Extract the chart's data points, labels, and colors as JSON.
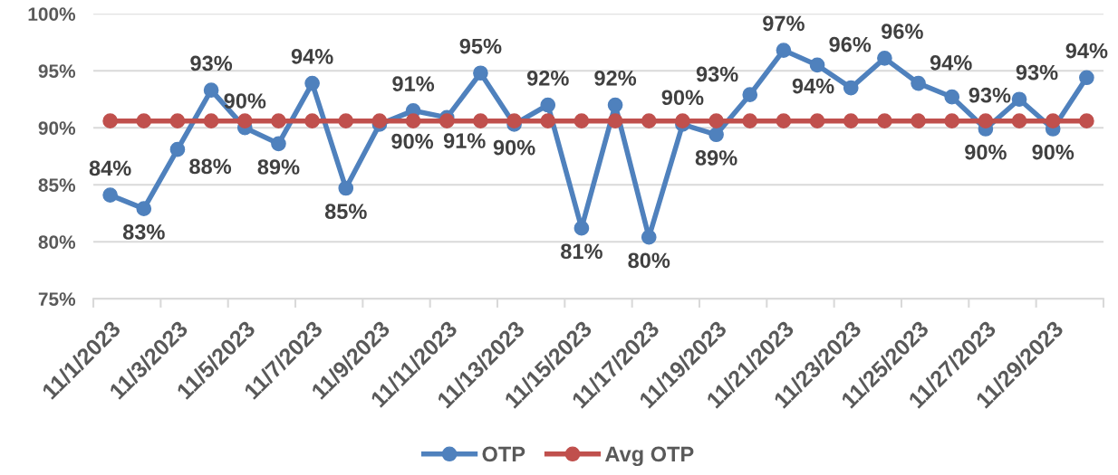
{
  "chart_data": {
    "type": "line",
    "categories": [
      "11/1/2023",
      null,
      "11/3/2023",
      null,
      "11/5/2023",
      null,
      "11/7/2023",
      null,
      "11/9/2023",
      null,
      "11/11/2023",
      null,
      "11/13/2023",
      null,
      "11/15/2023",
      null,
      "11/17/2023",
      null,
      "11/19/2023",
      null,
      "11/21/2023",
      null,
      "11/23/2023",
      null,
      "11/25/2023",
      null,
      "11/27/2023",
      null,
      "11/29/2023",
      null
    ],
    "series": [
      {
        "name": "OTP",
        "color": "#4f81bd",
        "values": [
          84.1,
          82.9,
          88.1,
          93.3,
          90.0,
          88.6,
          93.9,
          84.7,
          90.3,
          91.5,
          90.9,
          94.8,
          90.3,
          92.0,
          81.2,
          92.0,
          80.4,
          90.3,
          89.4,
          92.9,
          96.8,
          95.5,
          93.5,
          96.1,
          93.9,
          92.7,
          89.9,
          92.5,
          89.9,
          94.4
        ],
        "value_labels": [
          "84%",
          "83%",
          "88%",
          "93%",
          "90%",
          "89%",
          "94%",
          "85%",
          "90%",
          "91%",
          "91%",
          "95%",
          "90%",
          "92%",
          "81%",
          "92%",
          "80%",
          "90%",
          "89%",
          "93%",
          "97%",
          "96%",
          "94%",
          "96%",
          "94%",
          "93%",
          "90%",
          "93%",
          "90%",
          "94%"
        ]
      },
      {
        "name": "Avg OTP",
        "color": "#c0504d",
        "values": [
          90.6,
          90.6,
          90.6,
          90.6,
          90.6,
          90.6,
          90.6,
          90.6,
          90.6,
          90.6,
          90.6,
          90.6,
          90.6,
          90.6,
          90.6,
          90.6,
          90.6,
          90.6,
          90.6,
          90.6,
          90.6,
          90.6,
          90.6,
          90.6,
          90.6,
          90.6,
          90.6,
          90.6,
          90.6,
          90.6
        ]
      }
    ],
    "ylim": [
      75,
      100
    ],
    "yticks": [
      {
        "value": 75,
        "label": "75%"
      },
      {
        "value": 80,
        "label": "80%"
      },
      {
        "value": 85,
        "label": "85%"
      },
      {
        "value": 90,
        "label": "90%"
      },
      {
        "value": 95,
        "label": "95%"
      },
      {
        "value": 100,
        "label": "100%"
      }
    ],
    "grid": "y",
    "legend": "bottom",
    "marker": "circle",
    "line_style": "solid"
  }
}
